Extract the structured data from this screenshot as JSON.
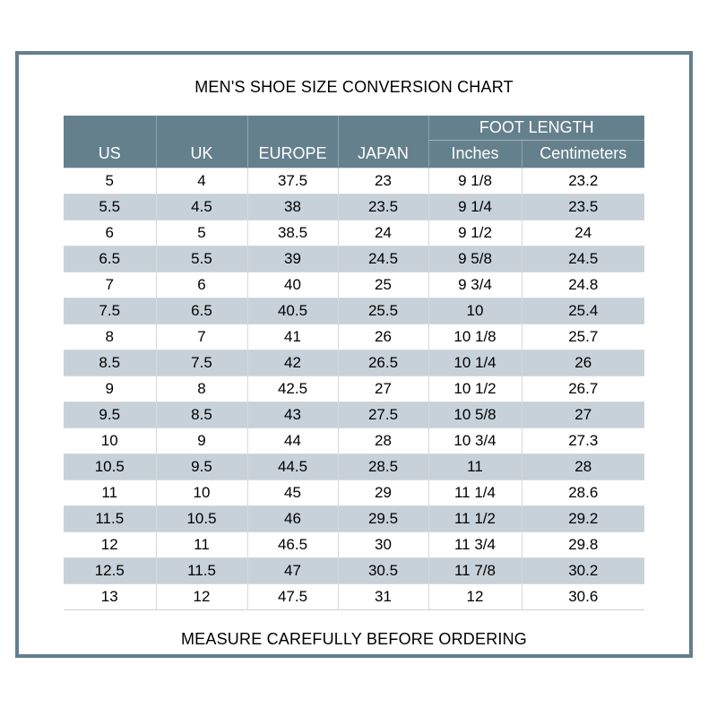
{
  "title": "MEN'S SHOE SIZE CONVERSION CHART",
  "footer": "MEASURE CAREFULLY BEFORE ORDERING",
  "colors": {
    "frame_border": "#627F8C",
    "header_bg": "#64808D",
    "header_text": "#FFFFFF",
    "row_stripe": "#C7D1D9",
    "row_divider": "#D6DADD",
    "body_text": "#000000",
    "background": "#FFFFFF"
  },
  "chart_data": {
    "type": "table",
    "title": "MEN'S SHOE SIZE CONVERSION CHART",
    "column_group": {
      "label": "FOOT LENGTH",
      "spans_columns": [
        "Inches",
        "Centimeters"
      ]
    },
    "columns": [
      "US",
      "UK",
      "EUROPE",
      "JAPAN",
      "Inches",
      "Centimeters"
    ],
    "rows": [
      [
        "5",
        "4",
        "37.5",
        "23",
        "9 1/8",
        "23.2"
      ],
      [
        "5.5",
        "4.5",
        "38",
        "23.5",
        "9 1/4",
        "23.5"
      ],
      [
        "6",
        "5",
        "38.5",
        "24",
        "9 1/2",
        "24"
      ],
      [
        "6.5",
        "5.5",
        "39",
        "24.5",
        "9 5/8",
        "24.5"
      ],
      [
        "7",
        "6",
        "40",
        "25",
        "9 3/4",
        "24.8"
      ],
      [
        "7.5",
        "6.5",
        "40.5",
        "25.5",
        "10",
        "25.4"
      ],
      [
        "8",
        "7",
        "41",
        "26",
        "10 1/8",
        "25.7"
      ],
      [
        "8.5",
        "7.5",
        "42",
        "26.5",
        "10 1/4",
        "26"
      ],
      [
        "9",
        "8",
        "42.5",
        "27",
        "10 1/2",
        "26.7"
      ],
      [
        "9.5",
        "8.5",
        "43",
        "27.5",
        "10 5/8",
        "27"
      ],
      [
        "10",
        "9",
        "44",
        "28",
        "10 3/4",
        "27.3"
      ],
      [
        "10.5",
        "9.5",
        "44.5",
        "28.5",
        "11",
        "28"
      ],
      [
        "11",
        "10",
        "45",
        "29",
        "11 1/4",
        "28.6"
      ],
      [
        "11.5",
        "10.5",
        "46",
        "29.5",
        "11 1/2",
        "29.2"
      ],
      [
        "12",
        "11",
        "46.5",
        "30",
        "11 3/4",
        "29.8"
      ],
      [
        "12.5",
        "11.5",
        "47",
        "30.5",
        "11 7/8",
        "30.2"
      ],
      [
        "13",
        "12",
        "47.5",
        "31",
        "12",
        "30.6"
      ]
    ]
  }
}
